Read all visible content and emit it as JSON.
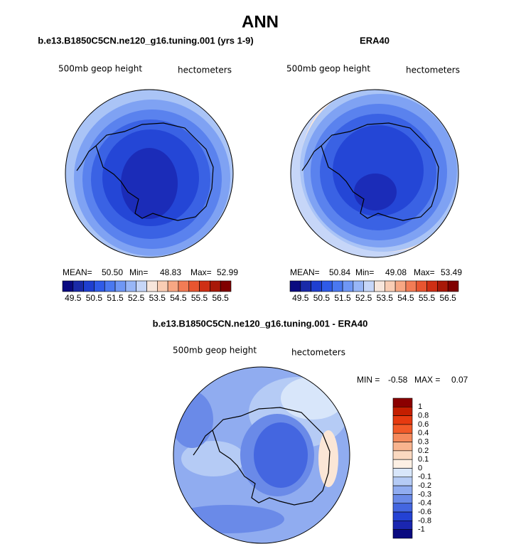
{
  "title": "ANN",
  "panels": [
    {
      "title": "b.e13.B1850C5CN.ne120_g16.tuning.001 (yrs 1-9)",
      "variable": "500mb geop height",
      "units": "hectometers",
      "stats": [
        {
          "label": "MEAN=",
          "value": "50.50"
        },
        {
          "label": "Min=",
          "value": "48.83"
        },
        {
          "label": "Max=",
          "value": "52.99"
        }
      ]
    },
    {
      "title": "ERA40",
      "variable": "500mb geop height",
      "units": "hectometers",
      "stats": [
        {
          "label": "MEAN=",
          "value": "50.84"
        },
        {
          "label": "Min=",
          "value": "49.08"
        },
        {
          "label": "Max=",
          "value": "53.49"
        }
      ]
    },
    {
      "title": "b.e13.B1850C5CN.ne120_g16.tuning.001 - ERA40",
      "variable": "500mb geop height",
      "units": "hectometers",
      "stats": [
        {
          "label": "MIN =",
          "value": "-0.58"
        },
        {
          "label": "MAX =",
          "value": "0.07"
        }
      ]
    }
  ],
  "colorbars": {
    "absolute": {
      "labels": [
        "49.5",
        "50.5",
        "51.5",
        "52.5",
        "53.5",
        "54.5",
        "55.5",
        "56.5"
      ],
      "colors": [
        "#0a0a80",
        "#1a2aa8",
        "#1f3fd0",
        "#2f5be8",
        "#4a78f0",
        "#6f97f5",
        "#98b6f7",
        "#c6d6f8",
        "#f7e6dc",
        "#f9cdb4",
        "#f7a783",
        "#f27c55",
        "#e85530",
        "#cf2f14",
        "#a81808",
        "#800000"
      ]
    },
    "difference": {
      "labels": [
        "1",
        "0.8",
        "0.6",
        "0.4",
        "0.3",
        "0.2",
        "0.1",
        "0",
        "-0.1",
        "-0.2",
        "-0.3",
        "-0.4",
        "-0.6",
        "-0.8",
        "-1"
      ],
      "colors": [
        "#8b0000",
        "#c41e00",
        "#e63a10",
        "#f25a28",
        "#f58a5c",
        "#f8b48f",
        "#fbd9c0",
        "#fdf0e4",
        "#d8e6fa",
        "#b5cbf5",
        "#90acf0",
        "#6a8ae8",
        "#4466e0",
        "#2442d4",
        "#1a26b0",
        "#0a0a80"
      ]
    }
  }
}
